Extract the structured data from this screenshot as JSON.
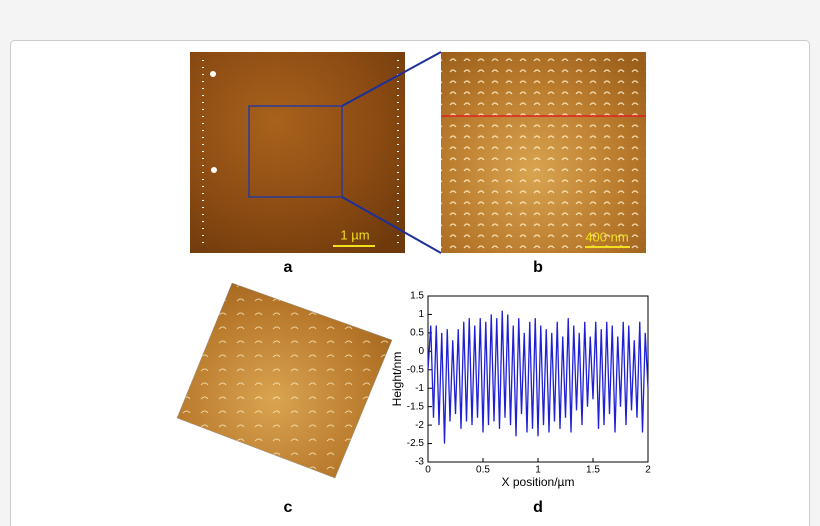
{
  "panels": {
    "a": {
      "label": "a",
      "scale_bar": "1 µm"
    },
    "b": {
      "label": "b",
      "scale_bar": "400 nm"
    },
    "c": {
      "label": "c"
    },
    "d": {
      "label": "d"
    }
  },
  "chart_data": {
    "type": "line",
    "xlabel": "X position/µm",
    "ylabel": "Height/nm",
    "x": [
      0,
      0.025,
      0.05,
      0.075,
      0.1,
      0.125,
      0.15,
      0.175,
      0.2,
      0.225,
      0.25,
      0.275,
      0.3,
      0.325,
      0.35,
      0.375,
      0.4,
      0.425,
      0.45,
      0.475,
      0.5,
      0.525,
      0.55,
      0.575,
      0.6,
      0.625,
      0.65,
      0.675,
      0.7,
      0.725,
      0.75,
      0.775,
      0.8,
      0.825,
      0.85,
      0.875,
      0.9,
      0.925,
      0.95,
      0.975,
      1,
      1.025,
      1.05,
      1.075,
      1.1,
      1.125,
      1.15,
      1.175,
      1.2,
      1.225,
      1.25,
      1.275,
      1.3,
      1.325,
      1.35,
      1.375,
      1.4,
      1.425,
      1.45,
      1.475,
      1.5,
      1.525,
      1.55,
      1.575,
      1.6,
      1.625,
      1.65,
      1.675,
      1.7,
      1.725,
      1.75,
      1.775,
      1.8,
      1.825,
      1.85,
      1.875,
      1.9,
      1.925,
      1.95,
      1.975,
      2
    ],
    "series": [
      {
        "color": "#1f1fd6",
        "values": [
          -0.5,
          0.7,
          -1.8,
          0.7,
          -2.0,
          0.5,
          -2.5,
          0.6,
          -1.9,
          0.3,
          -1.7,
          0.6,
          -2.1,
          0.8,
          -1.9,
          0.9,
          -2.0,
          0.7,
          -1.8,
          0.9,
          -2.2,
          0.8,
          -2.0,
          1.0,
          -1.9,
          0.9,
          -2.1,
          1.1,
          -1.8,
          1.0,
          -2.0,
          0.7,
          -2.3,
          0.9,
          -1.7,
          0.5,
          -2.2,
          0.8,
          -2.1,
          0.9,
          -2.3,
          0.7,
          -2.0,
          0.6,
          -2.2,
          0.5,
          -1.9,
          0.8,
          -2.1,
          0.4,
          -1.8,
          0.9,
          -2.2,
          0.7,
          -1.6,
          0.5,
          -2.0,
          0.8,
          -1.5,
          0.4,
          -1.3,
          0.8,
          -2.1,
          0.6,
          -2.0,
          0.8,
          -1.7,
          0.7,
          -2.2,
          0.4,
          -1.5,
          0.8,
          -2.0,
          0.7,
          -1.6,
          0.3,
          -1.8,
          0.8,
          -2.2,
          0.5,
          -1.0
        ]
      }
    ],
    "xlim": [
      0,
      2
    ],
    "xticks": [
      0,
      0.5,
      1,
      1.5,
      2
    ],
    "ylim": [
      -3,
      1.5
    ],
    "yticks": [
      -3,
      -2.5,
      -2,
      -1.5,
      -1,
      -0.5,
      0,
      0.5,
      1,
      1.5
    ]
  }
}
